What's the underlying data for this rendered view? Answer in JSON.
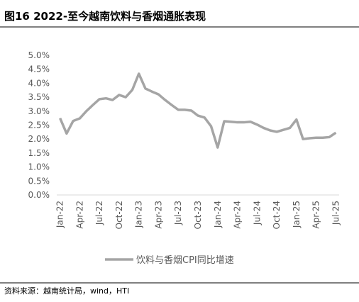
{
  "chart_data": {
    "type": "line",
    "title": "图16 2022-至今越南饮料与香烟通胀表现",
    "source": "资料来源：越南统计局，wind，HTI",
    "categories": [
      "Jan-22",
      null,
      null,
      "Apr-22",
      null,
      null,
      "Jul-22",
      null,
      null,
      "Oct-22",
      null,
      null,
      "Jan-23",
      null,
      null,
      "Apr-23",
      null,
      null,
      "Jul-23",
      null,
      null,
      "Oct-23",
      null,
      null,
      "Jan-24",
      null,
      null,
      "Apr-24",
      null,
      null,
      "Jul-24",
      null,
      null,
      "Oct-24",
      null,
      null,
      "Jan-25",
      null,
      null,
      "Apr-25",
      null,
      null,
      "Jul-25"
    ],
    "series": [
      {
        "name": "饮料与香烟CPI同比增速",
        "color": "#a5a5a5",
        "values": [
          2.75,
          2.2,
          2.65,
          2.74,
          3.0,
          3.22,
          3.43,
          3.46,
          3.4,
          3.58,
          3.5,
          3.76,
          4.34,
          3.81,
          3.7,
          3.6,
          3.4,
          3.22,
          3.05,
          3.05,
          3.02,
          2.84,
          2.77,
          2.46,
          1.7,
          2.64,
          2.62,
          2.6,
          2.6,
          2.62,
          2.52,
          2.4,
          2.31,
          2.26,
          2.33,
          2.4,
          2.7,
          2.0,
          2.03,
          2.05,
          2.05,
          2.07,
          2.23
        ]
      }
    ],
    "ylim": [
      0,
      5
    ],
    "yticks": [
      {
        "value": 0,
        "label": "0.0%"
      },
      {
        "value": 0.5,
        "label": "0.5%"
      },
      {
        "value": 1,
        "label": "1.0%"
      },
      {
        "value": 1.5,
        "label": "1.5%"
      },
      {
        "value": 2,
        "label": "2.0%"
      },
      {
        "value": 2.5,
        "label": "2.5%"
      },
      {
        "value": 3,
        "label": "3.0%"
      },
      {
        "value": 3.5,
        "label": "3.5%"
      },
      {
        "value": 4,
        "label": "4.0%"
      },
      {
        "value": 4.5,
        "label": "4.5%"
      },
      {
        "value": 5,
        "label": "5.0%"
      }
    ],
    "grid": false
  }
}
